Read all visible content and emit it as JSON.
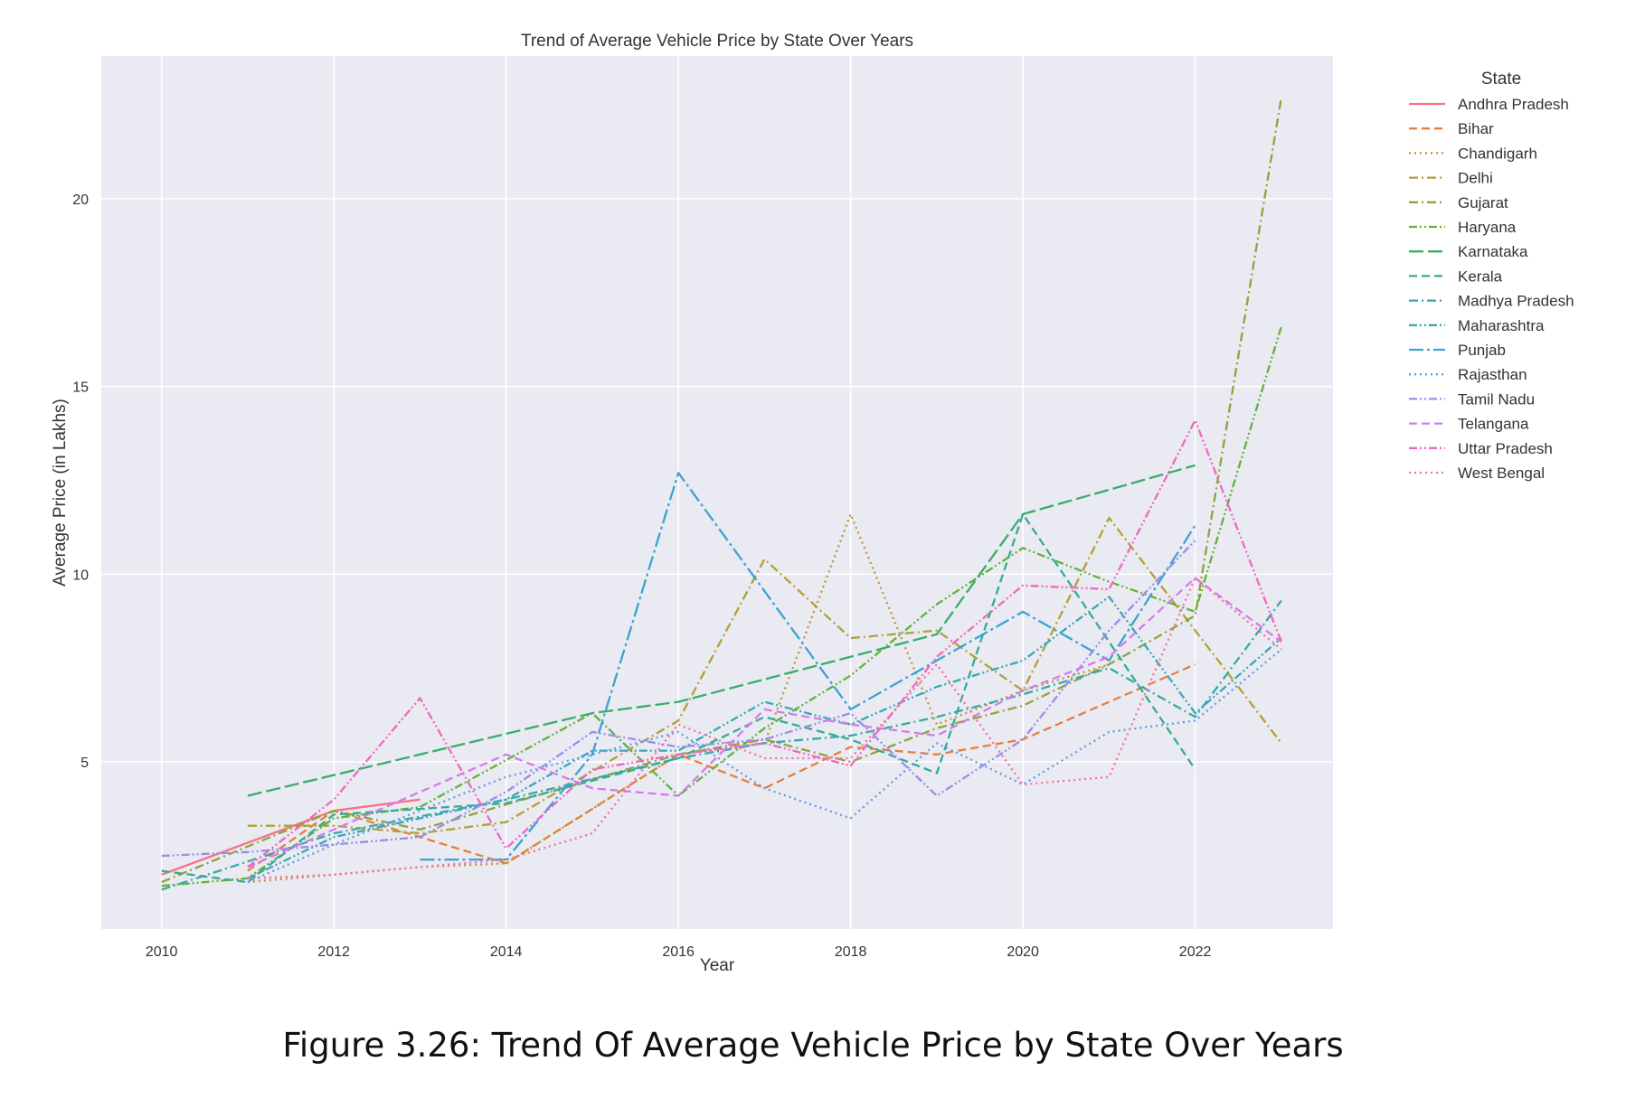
{
  "caption": "Figure 3.26: Trend Of Average Vehicle Price by State Over Years",
  "chart_data": {
    "type": "line",
    "title": "Trend of Average Vehicle Price by State Over Years",
    "xlabel": "Year",
    "ylabel": "Average Price (in Lakhs)",
    "xlim": [
      2009.3,
      2023.6
    ],
    "ylim": [
      0.55,
      23.8
    ],
    "xticks": [
      2010,
      2012,
      2014,
      2016,
      2018,
      2020,
      2022
    ],
    "yticks": [
      5,
      10,
      15,
      20
    ],
    "grid": true,
    "background": "#eaeaf2",
    "legend": {
      "title": "State",
      "placement": "outside-right"
    },
    "series": [
      {
        "name": "Andhra Pradesh",
        "color": "#f77189",
        "dash": "solid",
        "points": [
          [
            2010,
            2.0
          ],
          [
            2012,
            3.7
          ],
          [
            2013,
            4.0
          ]
        ]
      },
      {
        "name": "Bihar",
        "color": "#e5803e",
        "dash": "dashed",
        "points": [
          [
            2011,
            2.1
          ],
          [
            2012,
            3.7
          ],
          [
            2014,
            2.3
          ],
          [
            2016,
            5.2
          ],
          [
            2017,
            4.3
          ],
          [
            2018,
            5.4
          ],
          [
            2019,
            5.2
          ],
          [
            2020,
            5.6
          ],
          [
            2022,
            7.6
          ]
        ]
      },
      {
        "name": "Chandigarh",
        "color": "#c39131",
        "dash": "dotted",
        "points": [
          [
            2011,
            1.8
          ],
          [
            2013,
            2.2
          ],
          [
            2014,
            2.3
          ],
          [
            2016,
            5.2
          ],
          [
            2017,
            5.5
          ],
          [
            2018,
            11.6
          ],
          [
            2019,
            6.0
          ],
          [
            2020,
            6.9
          ],
          [
            2021,
            7.6
          ]
        ]
      },
      {
        "name": "Delhi",
        "color": "#b59e36",
        "dash": "dashdot",
        "points": [
          [
            2011,
            3.3
          ],
          [
            2012,
            3.3
          ],
          [
            2013,
            3.1
          ],
          [
            2014,
            3.4
          ],
          [
            2016,
            6.1
          ],
          [
            2017,
            10.4
          ],
          [
            2018,
            8.3
          ],
          [
            2019,
            8.5
          ],
          [
            2020,
            6.9
          ],
          [
            2021,
            11.5
          ],
          [
            2023,
            5.5
          ]
        ]
      },
      {
        "name": "Gujarat",
        "color": "#8fa43a",
        "dash": "dashdot",
        "points": [
          [
            2010,
            1.8
          ],
          [
            2012,
            3.7
          ],
          [
            2013,
            3.2
          ],
          [
            2016,
            5.2
          ],
          [
            2017,
            5.6
          ],
          [
            2018,
            5.0
          ],
          [
            2019,
            5.9
          ],
          [
            2020,
            6.5
          ],
          [
            2021,
            7.6
          ],
          [
            2022,
            8.9
          ],
          [
            2023,
            22.7
          ]
        ]
      },
      {
        "name": "Haryana",
        "color": "#5fb23b",
        "dash": "dashdotdot",
        "points": [
          [
            2010,
            1.7
          ],
          [
            2011,
            1.9
          ],
          [
            2012,
            3.5
          ],
          [
            2013,
            3.8
          ],
          [
            2015,
            6.3
          ],
          [
            2016,
            4.1
          ],
          [
            2017,
            5.9
          ],
          [
            2018,
            7.3
          ],
          [
            2019,
            9.2
          ],
          [
            2020,
            10.7
          ],
          [
            2021,
            9.8
          ],
          [
            2022,
            9.0
          ],
          [
            2023,
            16.6
          ]
        ]
      },
      {
        "name": "Karnataka",
        "color": "#37ad6a",
        "dash": "longdash",
        "points": [
          [
            2011,
            4.1
          ],
          [
            2013,
            5.2
          ],
          [
            2015,
            6.3
          ],
          [
            2016,
            6.6
          ],
          [
            2019,
            8.4
          ],
          [
            2020,
            11.6
          ],
          [
            2022,
            12.9
          ]
        ]
      },
      {
        "name": "Kerala",
        "color": "#35ab95",
        "dash": "dashed",
        "points": [
          [
            2010,
            2.1
          ],
          [
            2011,
            1.8
          ],
          [
            2012,
            3.6
          ],
          [
            2014,
            3.9
          ],
          [
            2016,
            5.1
          ],
          [
            2017,
            6.2
          ],
          [
            2018,
            5.6
          ],
          [
            2019,
            4.7
          ],
          [
            2020,
            11.6
          ],
          [
            2022,
            4.8
          ]
        ]
      },
      {
        "name": "Madhya Pradesh",
        "color": "#37a9a7",
        "dash": "dashdot",
        "points": [
          [
            2010,
            1.6
          ],
          [
            2012,
            3.1
          ],
          [
            2014,
            4.0
          ],
          [
            2016,
            5.1
          ],
          [
            2017,
            5.5
          ],
          [
            2018,
            5.7
          ],
          [
            2019,
            6.2
          ],
          [
            2020,
            6.8
          ],
          [
            2021,
            7.5
          ],
          [
            2022,
            6.2
          ],
          [
            2023,
            9.3
          ]
        ]
      },
      {
        "name": "Maharashtra",
        "color": "#39a7b8",
        "dash": "dashdotdot",
        "points": [
          [
            2011,
            1.9
          ],
          [
            2012,
            3.0
          ],
          [
            2014,
            4.0
          ],
          [
            2015,
            5.3
          ],
          [
            2016,
            5.3
          ],
          [
            2017,
            6.6
          ],
          [
            2018,
            6.0
          ],
          [
            2019,
            7.0
          ],
          [
            2020,
            7.7
          ],
          [
            2021,
            9.4
          ],
          [
            2022,
            6.3
          ],
          [
            2023,
            8.3
          ]
        ]
      },
      {
        "name": "Punjab",
        "color": "#3ba3d0",
        "dash": "longdashdot",
        "points": [
          [
            2013,
            2.4
          ],
          [
            2014,
            2.4
          ],
          [
            2015,
            5.2
          ],
          [
            2016,
            12.7
          ],
          [
            2018,
            6.4
          ],
          [
            2020,
            9.0
          ],
          [
            2021,
            7.7
          ],
          [
            2022,
            11.3
          ]
        ]
      },
      {
        "name": "Rajasthan",
        "color": "#5c9be9",
        "dash": "dotted",
        "points": [
          [
            2011,
            1.8
          ],
          [
            2012,
            2.8
          ],
          [
            2014,
            4.6
          ],
          [
            2016,
            5.8
          ],
          [
            2017,
            4.3
          ],
          [
            2018,
            3.5
          ],
          [
            2019,
            5.5
          ],
          [
            2020,
            4.4
          ],
          [
            2021,
            5.8
          ],
          [
            2022,
            6.1
          ],
          [
            2023,
            8.0
          ]
        ]
      },
      {
        "name": "Tamil Nadu",
        "color": "#9a8cec",
        "dash": "dashdotdot",
        "points": [
          [
            2010,
            2.5
          ],
          [
            2011,
            2.6
          ],
          [
            2012,
            2.8
          ],
          [
            2013,
            3.0
          ],
          [
            2014,
            4.2
          ],
          [
            2015,
            5.8
          ],
          [
            2016,
            5.4
          ],
          [
            2017,
            5.6
          ],
          [
            2018,
            6.3
          ],
          [
            2019,
            4.1
          ],
          [
            2020,
            5.6
          ],
          [
            2021,
            8.5
          ],
          [
            2022,
            10.9
          ]
        ]
      },
      {
        "name": "Telangana",
        "color": "#d57bec",
        "dash": "dashed",
        "points": [
          [
            2011,
            2.2
          ],
          [
            2014,
            5.2
          ],
          [
            2015,
            4.3
          ],
          [
            2016,
            4.1
          ],
          [
            2017,
            6.4
          ],
          [
            2018,
            6.0
          ],
          [
            2019,
            5.7
          ],
          [
            2020,
            6.9
          ],
          [
            2021,
            7.8
          ],
          [
            2022,
            9.9
          ],
          [
            2023,
            8.2
          ]
        ]
      },
      {
        "name": "Uttar Pradesh",
        "color": "#f067c5",
        "dash": "dashdotdot",
        "points": [
          [
            2011,
            2.2
          ],
          [
            2012,
            4.0
          ],
          [
            2013,
            6.7
          ],
          [
            2014,
            2.7
          ],
          [
            2015,
            4.8
          ],
          [
            2016,
            5.2
          ],
          [
            2017,
            5.5
          ],
          [
            2018,
            4.9
          ],
          [
            2019,
            7.8
          ],
          [
            2020,
            9.7
          ],
          [
            2021,
            9.6
          ],
          [
            2022,
            14.1
          ],
          [
            2023,
            8.2
          ]
        ]
      },
      {
        "name": "West Bengal",
        "color": "#f56d9e",
        "dash": "dotted",
        "points": [
          [
            2011,
            1.9
          ],
          [
            2012,
            2.0
          ],
          [
            2013,
            2.2
          ],
          [
            2014,
            2.4
          ],
          [
            2015,
            3.1
          ],
          [
            2016,
            6.0
          ],
          [
            2017,
            5.1
          ],
          [
            2018,
            5.1
          ],
          [
            2019,
            7.6
          ],
          [
            2020,
            4.4
          ],
          [
            2021,
            4.6
          ],
          [
            2022,
            9.9
          ],
          [
            2023,
            8.0
          ]
        ]
      }
    ]
  }
}
